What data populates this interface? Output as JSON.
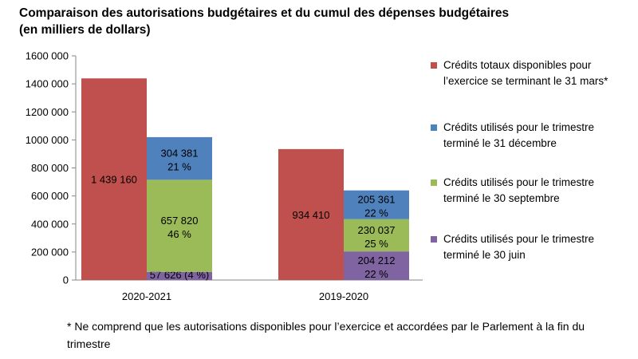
{
  "chart_data": {
    "type": "bar",
    "stacked_mixed": true,
    "title": "Comparaison des autorisations budgétaires et du cumul des dépenses budgétaires (en milliers de dollars)",
    "ylim": [
      0,
      1600000
    ],
    "ytick_values": [
      0,
      200000,
      400000,
      600000,
      800000,
      1000000,
      1200000,
      1400000,
      1600000
    ],
    "ytick_labels": [
      "0",
      "200 000",
      "400 000",
      "600 000",
      "800 000",
      "1000 000",
      "1200 000",
      "1400 000",
      "1600 000"
    ],
    "categories": [
      "2020-2021",
      "2019-2020"
    ],
    "series": [
      {
        "name": "Crédits totaux disponibles pour l’exercice se terminant le 31 mars*",
        "color": "#c0504d",
        "values": [
          1439160,
          934410
        ],
        "labels": [
          "1 439 160",
          "934 410"
        ]
      },
      {
        "name": "Crédits utilisés pour le trimestre terminé le 31 décembre",
        "color": "#4f81bd",
        "values": [
          304381,
          205361
        ],
        "labels": [
          "304 381",
          "205 361"
        ],
        "pct": [
          "21 %",
          "22 %"
        ]
      },
      {
        "name": "Crédits utilisés pour le trimestre terminé le 30 septembre",
        "color": "#9bbb59",
        "values": [
          657820,
          230037
        ],
        "labels": [
          "657 820",
          "230 037"
        ],
        "pct": [
          "46 %",
          "25 %"
        ]
      },
      {
        "name": "Crédits utilisés pour le trimestre terminé le 30 juin",
        "color": "#8064a2",
        "values": [
          57626,
          204212
        ],
        "labels": [
          "57 626 (4 %)",
          "204 212"
        ],
        "pct": [
          "",
          "22 %"
        ]
      }
    ],
    "legend": [
      {
        "color": "#c0504d",
        "label": "Crédits totaux disponibles pour l’exercice se terminant le 31 mars*"
      },
      {
        "color": "#4f81bd",
        "label": "Crédits utilisés pour le trimestre terminé le 31 décembre"
      },
      {
        "color": "#9bbb59",
        "label": "Crédits utilisés pour le trimestre terminé le 30 septembre"
      },
      {
        "color": "#8064a2",
        "label": "Crédits utilisés pour le trimestre terminé le 30 juin"
      }
    ],
    "legend_position": "right",
    "footnote": "* Ne comprend que les autorisations disponibles pour l’exercice et accordées par le Parlement à la fin du trimestre"
  }
}
